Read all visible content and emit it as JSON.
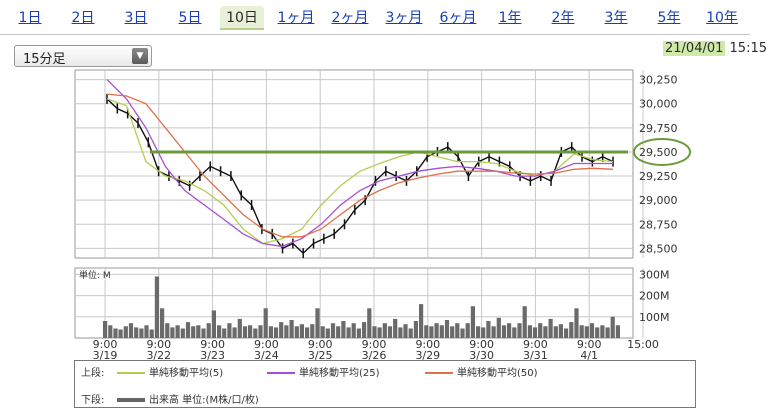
{
  "tabs": [
    {
      "label": "1日"
    },
    {
      "label": "2日"
    },
    {
      "label": "3日"
    },
    {
      "label": "5日"
    },
    {
      "label": "10日",
      "active": true
    },
    {
      "label": "1ヶ月"
    },
    {
      "label": "2ヶ月"
    },
    {
      "label": "3ヶ月"
    },
    {
      "label": "6ヶ月"
    },
    {
      "label": "1年"
    },
    {
      "label": "2年"
    },
    {
      "label": "3年"
    },
    {
      "label": "5年"
    },
    {
      "label": "10年"
    }
  ],
  "interval_select": {
    "value": "15分足"
  },
  "datetime": {
    "date": "21/04/01",
    "time": "15:15"
  },
  "colors": {
    "ma5": "#b5cc52",
    "ma25": "#a64fd6",
    "ma50": "#e0704a",
    "price": "#111111",
    "volume": "#6a6a6a",
    "annotation": "#6a9a3a",
    "grid": "#c8c8c8"
  },
  "legend": {
    "upper_label": "上段:",
    "lower_label": "下段:",
    "ma5": "単純移動平均(5)",
    "ma25": "単純移動平均(25)",
    "ma50": "単純移動平均(50)",
    "volume": "出来高 単位:(M株/口/枚)"
  },
  "chart_data": {
    "type": "line",
    "price_panel": {
      "ylim": [
        28400,
        30350
      ],
      "yticks": [
        "30,250",
        "30,000",
        "29,750",
        "29,500",
        "29,250",
        "29,000",
        "28,750",
        "28,500"
      ],
      "ytick_values": [
        30250,
        30000,
        29750,
        29500,
        29250,
        29000,
        28750,
        28500
      ],
      "annotation_level": 29500,
      "series": [
        {
          "name": "単純移動平均(5)",
          "key": "ma5",
          "values": [
            30050,
            29980,
            29400,
            29250,
            29200,
            29100,
            28950,
            28700,
            28550,
            28600,
            28700,
            28950,
            29150,
            29300,
            29380,
            29450,
            29500,
            29450,
            29400,
            29400,
            29380,
            29300,
            29250,
            29300,
            29480,
            29420,
            29400
          ]
        },
        {
          "name": "単純移動平均(25)",
          "key": "ma25",
          "values": [
            30250,
            30050,
            29750,
            29350,
            29100,
            28950,
            28800,
            28650,
            28550,
            28520,
            28600,
            28750,
            28950,
            29100,
            29200,
            29250,
            29300,
            29330,
            29350,
            29330,
            29300,
            29250,
            29250,
            29300,
            29380,
            29380,
            29380
          ]
        },
        {
          "name": "単純移動平均(50)",
          "key": "ma50",
          "values": [
            30100,
            30080,
            30000,
            29750,
            29500,
            29250,
            29050,
            28850,
            28700,
            28620,
            28620,
            28700,
            28850,
            29000,
            29100,
            29180,
            29230,
            29270,
            29300,
            29300,
            29300,
            29280,
            29270,
            29280,
            29320,
            29330,
            29320
          ]
        }
      ],
      "price": [
        30050,
        29950,
        29900,
        29800,
        29600,
        29300,
        29250,
        29200,
        29150,
        29250,
        29350,
        29300,
        29250,
        29050,
        28950,
        28700,
        28650,
        28500,
        28550,
        28450,
        28550,
        28600,
        28650,
        28750,
        28900,
        29000,
        29200,
        29300,
        29250,
        29200,
        29300,
        29450,
        29500,
        29550,
        29450,
        29250,
        29400,
        29450,
        29400,
        29350,
        29250,
        29200,
        29250,
        29200,
        29500,
        29550,
        29450,
        29400,
        29450,
        29400
      ]
    },
    "volume_panel": {
      "unit_label": "単位: M",
      "ylim": [
        0,
        330
      ],
      "yticks": [
        "300M",
        "200M",
        "100M"
      ],
      "ytick_values": [
        300,
        200,
        100
      ],
      "values": [
        80,
        60,
        45,
        40,
        55,
        70,
        50,
        45,
        60,
        40,
        290,
        140,
        70,
        50,
        60,
        45,
        75,
        55,
        60,
        45,
        70,
        130,
        60,
        45,
        70,
        50,
        90,
        55,
        60,
        45,
        60,
        140,
        55,
        50,
        75,
        60,
        85,
        55,
        65,
        50,
        65,
        140,
        55,
        45,
        70,
        55,
        80,
        50,
        70,
        45,
        75,
        140,
        55,
        50,
        70,
        55,
        90,
        50,
        65,
        45,
        80,
        160,
        60,
        55,
        70,
        60,
        85,
        55,
        70,
        45,
        70,
        150,
        55,
        50,
        80,
        55,
        95,
        60,
        70,
        50,
        70,
        150,
        60,
        50,
        70,
        55,
        90,
        55,
        65,
        45,
        75,
        140,
        60,
        55,
        70,
        50,
        60,
        50,
        100,
        60
      ]
    },
    "x_labels": [
      {
        "time": "9:00",
        "date": "3/19"
      },
      {
        "time": "9:00",
        "date": "3/22"
      },
      {
        "time": "9:00",
        "date": "3/23"
      },
      {
        "time": "9:00",
        "date": "3/24"
      },
      {
        "time": "9:00",
        "date": "3/25"
      },
      {
        "time": "9:00",
        "date": "3/26"
      },
      {
        "time": "9:00",
        "date": "3/29"
      },
      {
        "time": "9:00",
        "date": "3/30"
      },
      {
        "time": "9:00",
        "date": "3/31"
      },
      {
        "time": "9:00",
        "date": "4/1"
      },
      {
        "time": "15:00",
        "date": ""
      }
    ]
  }
}
